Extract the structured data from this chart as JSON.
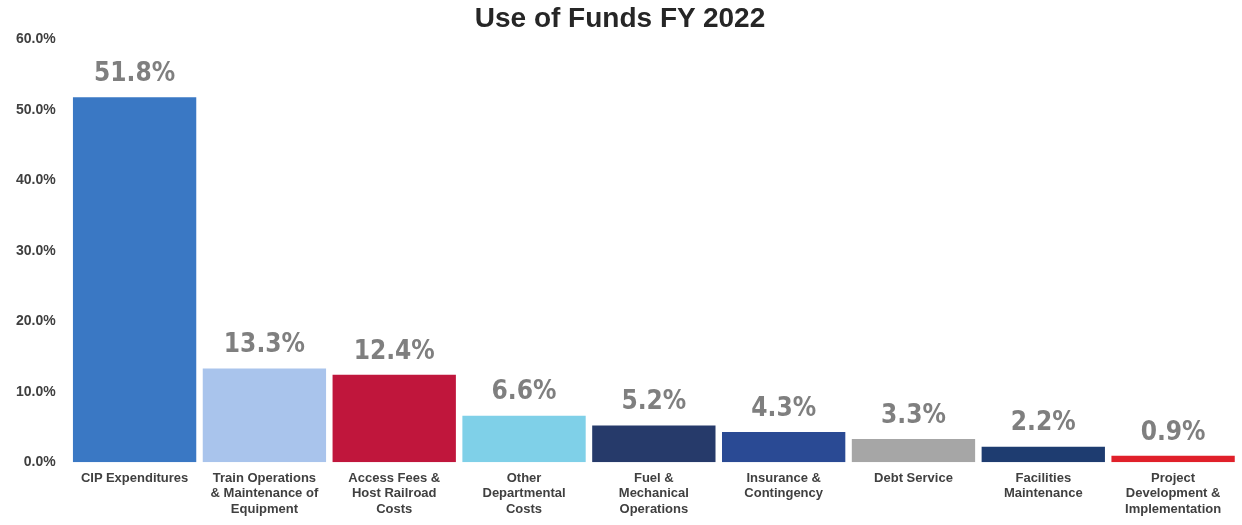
{
  "chart_data": {
    "type": "bar",
    "title": "Use of Funds FY 2022",
    "categories": [
      "CIP Expenditures",
      "Train Operations & Maintenance of Equipment",
      "Access Fees & Host Railroad Costs",
      "Other Departmental Costs",
      "Fuel & Mechanical Operations",
      "Insurance & Contingency",
      "Debt Service",
      "Facilities Maintenance",
      "Project Development & Implementation"
    ],
    "values": [
      51.8,
      13.3,
      12.4,
      6.6,
      5.2,
      4.3,
      3.3,
      2.2,
      0.9
    ],
    "colors": [
      "#3a78c4",
      "#a9c4ec",
      "#c0163c",
      "#7fd0e8",
      "#263a6a",
      "#2a4a94",
      "#a6a6a6",
      "#1e3c70",
      "#e0202a"
    ],
    "value_labels": [
      "51.8%",
      "13.3%",
      "12.4%",
      "6.6%",
      "5.2%",
      "4.3%",
      "3.3%",
      "2.2%",
      "0.9%"
    ],
    "ylim": [
      0,
      60
    ],
    "yticks": [
      {
        "value": 0,
        "label": "0.0%"
      },
      {
        "value": 10,
        "label": "10.0%"
      },
      {
        "value": 20,
        "label": "20.0%"
      },
      {
        "value": 30,
        "label": "30.0%"
      },
      {
        "value": 40,
        "label": "40.0%"
      },
      {
        "value": 50,
        "label": "50.0%"
      },
      {
        "value": 60,
        "label": "60.0%"
      }
    ],
    "grid": false,
    "legend": false
  }
}
